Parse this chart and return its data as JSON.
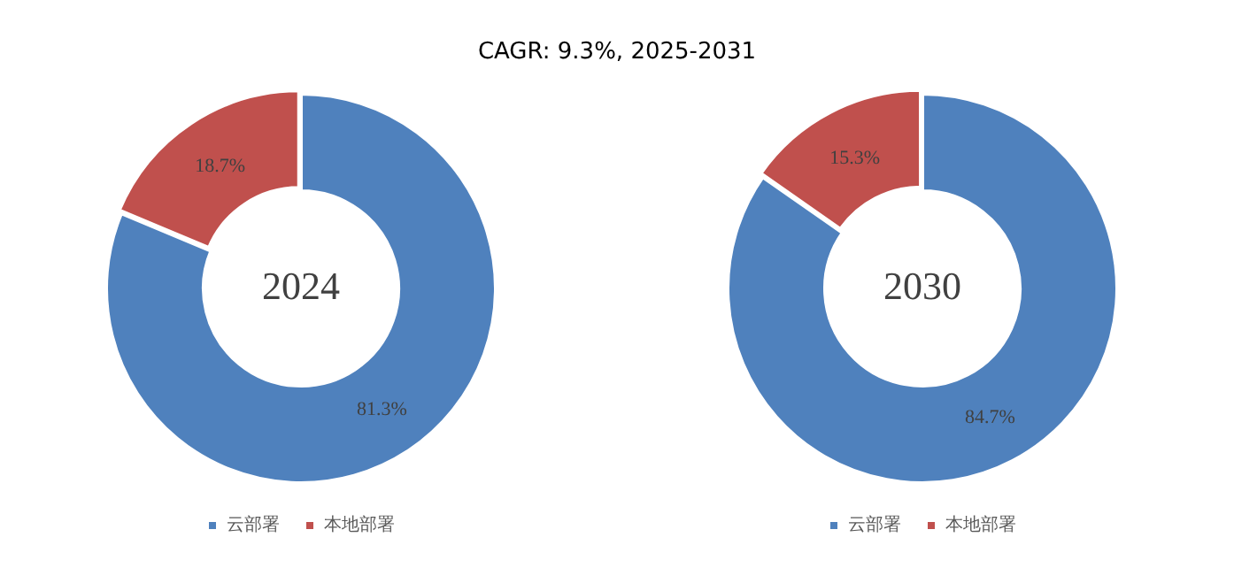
{
  "chart_data": [
    {
      "type": "donut",
      "title": "CAGR:   9.3%, 2025-2031",
      "categories": [
        "云部署",
        "本地部署"
      ],
      "values": [
        81.3,
        18.7
      ],
      "colors": [
        "#4f81bd",
        "#c0504d"
      ],
      "value_labels": [
        "81.3%",
        "18.7%"
      ],
      "annotations": [
        "2024"
      ],
      "legend": "bottom"
    },
    {
      "type": "donut",
      "categories": [
        "云部署",
        "本地部署"
      ],
      "values": [
        84.7,
        15.3
      ],
      "colors": [
        "#4f81bd",
        "#c0504d"
      ],
      "value_labels": [
        "84.7%",
        "15.3%"
      ],
      "annotations": [
        "2030"
      ],
      "legend": "bottom"
    }
  ]
}
